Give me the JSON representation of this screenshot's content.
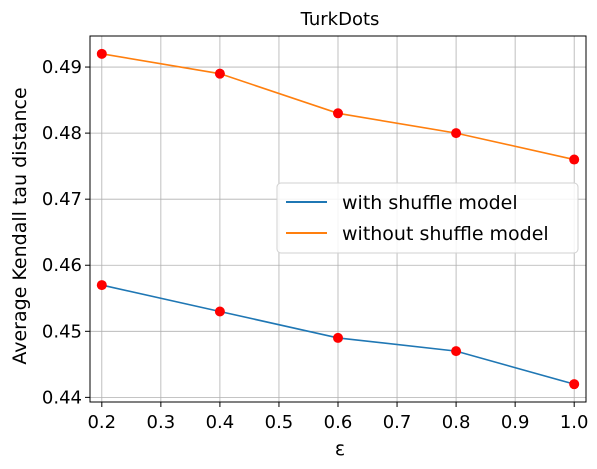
{
  "chart_data": {
    "type": "line",
    "title": "TurkDots",
    "xlabel": "ε",
    "ylabel": "Average Kendall tau distance",
    "x": [
      0.2,
      0.4,
      0.6,
      0.8,
      1.0
    ],
    "series": [
      {
        "name": "with shuffle model",
        "values": [
          0.457,
          0.453,
          0.449,
          0.447,
          0.442
        ],
        "color": "#1f77b4"
      },
      {
        "name": "without shuffle model",
        "values": [
          0.492,
          0.489,
          0.483,
          0.48,
          0.476
        ],
        "color": "#ff7f0e"
      }
    ],
    "marker_color": "#ff0000",
    "xlim": [
      0.18,
      1.02
    ],
    "ylim": [
      0.4393,
      0.4947
    ],
    "xticks": [
      0.2,
      0.3,
      0.4,
      0.5,
      0.6,
      0.7,
      0.8,
      0.9,
      1.0
    ],
    "xtick_labels": [
      "0.2",
      "0.3",
      "0.4",
      "0.5",
      "0.6",
      "0.7",
      "0.8",
      "0.9",
      "1.0"
    ],
    "yticks": [
      0.44,
      0.45,
      0.46,
      0.47,
      0.48,
      0.49
    ],
    "ytick_labels": [
      "0.44",
      "0.45",
      "0.46",
      "0.47",
      "0.48",
      "0.49"
    ],
    "grid": true,
    "legend_position": "center-right"
  }
}
